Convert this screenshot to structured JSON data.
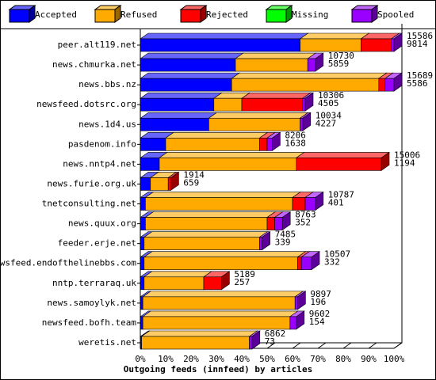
{
  "chart_data": {
    "type": "bar3d",
    "orientation": "horizontal",
    "stacked": true,
    "xlabel": "Outgoing feeds (innfeed) by articles",
    "categories": [
      "peer.alt119.net",
      "news.chmurka.net",
      "news.bbs.nz",
      "newsfeed.dotsrc.org",
      "news.1d4.us",
      "pasdenom.info",
      "news.nntp4.net",
      "news.furie.org.uk",
      "tnetconsulting.net",
      "news.quux.org",
      "feeder.erje.net",
      "newsfeed.endofthelinebbs.com",
      "nntp.terraraq.uk",
      "news.samoylyk.net",
      "newsfeed.bofh.team",
      "weretis.net"
    ],
    "offered": [
      15586,
      10730,
      15689,
      10306,
      10034,
      8206,
      15006,
      1914,
      10787,
      8763,
      7485,
      10507,
      5189,
      9897,
      9602,
      6862
    ],
    "accepted_count": [
      9814,
      5859,
      5586,
      4505,
      4227,
      1638,
      1194,
      659,
      401,
      352,
      339,
      332,
      257,
      196,
      154,
      73
    ],
    "series": [
      {
        "name": "Accepted",
        "color": "#0000ff",
        "values": [
          63,
          37.5,
          36,
          29,
          27,
          10,
          7.5,
          4,
          2,
          2,
          1.5,
          1.5,
          1.5,
          1,
          1,
          0.5
        ]
      },
      {
        "name": "Refused",
        "color": "#ffaa00",
        "values": [
          24,
          28.5,
          58,
          11,
          36,
          37,
          54,
          7,
          58,
          48,
          45.5,
          60.5,
          23.5,
          60,
          58,
          42.5
        ]
      },
      {
        "name": "Rejected",
        "color": "#ff0000",
        "values": [
          12,
          0,
          2.5,
          24,
          0,
          3,
          33.5,
          1,
          5,
          3,
          0,
          1.5,
          7,
          0,
          0,
          0
        ]
      },
      {
        "name": "Missing",
        "color": "#00ff00",
        "values": [
          0,
          0,
          0,
          0,
          0,
          0,
          0,
          0,
          0,
          0,
          0,
          0,
          0,
          0,
          0,
          0
        ]
      },
      {
        "name": "Spooled",
        "color": "#9900ff",
        "values": [
          1,
          3,
          3.5,
          1,
          1,
          2,
          0,
          0,
          4,
          3,
          1,
          4,
          0,
          1,
          2.5,
          1
        ]
      }
    ],
    "xlim": [
      0,
      100
    ],
    "xticks": [
      {
        "value": 0,
        "label": "0%"
      },
      {
        "value": 10,
        "label": "10%"
      },
      {
        "value": 20,
        "label": "20%"
      },
      {
        "value": 30,
        "label": "30%"
      },
      {
        "value": 40,
        "label": "40%"
      },
      {
        "value": 50,
        "label": "50%"
      },
      {
        "value": 60,
        "label": "60%"
      },
      {
        "value": 70,
        "label": "70%"
      },
      {
        "value": 80,
        "label": "80%"
      },
      {
        "value": 90,
        "label": "90%"
      },
      {
        "value": 100,
        "label": "100%"
      }
    ]
  }
}
